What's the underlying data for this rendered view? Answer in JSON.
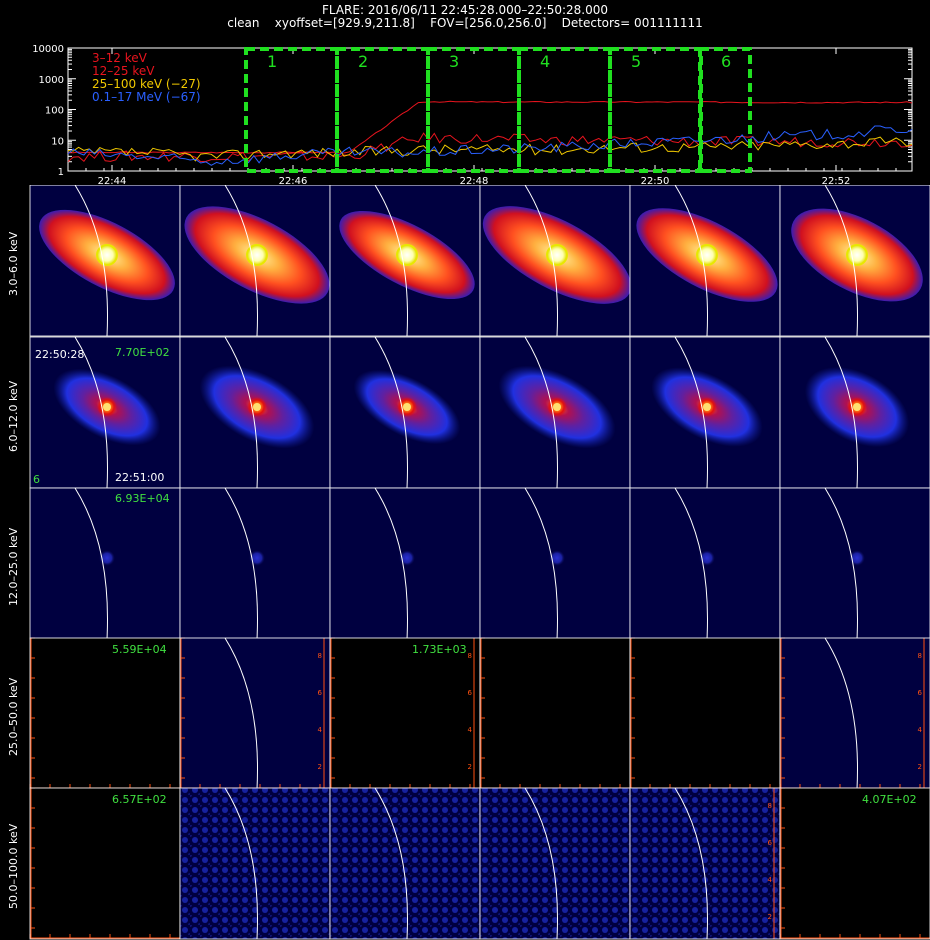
{
  "header": {
    "line1": "FLARE: 2016/06/11 22:45:28.000–22:50:28.000",
    "line2": "clean    xyoffset=[929.9,211.8]    FOV=[256.0,256.0]    Detectors= 001111111"
  },
  "lightcurve": {
    "y_ticks": [
      "10000",
      "1000",
      "100",
      "10",
      "1"
    ],
    "x_ticks": [
      "22:44",
      "22:46",
      "22:48",
      "22:50",
      "22:52"
    ],
    "legend": [
      {
        "label": "3–12 keV",
        "color": "#e8141e"
      },
      {
        "label": "12–25 keV",
        "color": "#e8141e"
      },
      {
        "label": "25–100 keV (−27)",
        "color": "#f0c800"
      },
      {
        "label": "0.1–17 MeV (−67)",
        "color": "#2a60ff"
      }
    ],
    "box_labels": [
      "1",
      "2",
      "3",
      "4",
      "5",
      "6"
    ],
    "box_color": "#20e020"
  },
  "chart_data": {
    "type": "line",
    "title": "",
    "xlabel": "",
    "ylabel": "",
    "x_ticks": [
      "22:44",
      "22:46",
      "22:48",
      "22:50",
      "22:52"
    ],
    "y_scale": "log",
    "ylim": [
      1,
      10000
    ],
    "series": [
      {
        "name": "3–12 keV",
        "color": "#e8141e",
        "values": [
          4,
          4,
          4,
          4,
          4,
          180,
          175,
          175,
          175,
          175,
          170,
          170,
          170
        ]
      },
      {
        "name": "12–25 keV",
        "color": "#e8141e",
        "values": [
          3,
          3,
          3,
          3,
          3,
          12,
          11,
          10,
          10,
          9,
          9,
          9,
          9
        ]
      },
      {
        "name": "25–100 keV (−27)",
        "color": "#f0c800",
        "values": [
          4,
          4,
          3,
          4,
          4,
          5,
          5,
          5,
          6,
          6,
          7,
          8,
          9
        ]
      },
      {
        "name": "0.1–17 MeV (−67)",
        "color": "#2a60ff",
        "values": [
          4,
          3,
          2,
          3,
          4,
          4,
          5,
          6,
          8,
          10,
          13,
          16,
          25
        ]
      }
    ]
  },
  "image_grid": {
    "row_labels": [
      "3.0–6.0 keV",
      "6.0–12.0 keV",
      "12.0–25.0 keV",
      "25.0–50.0 keV",
      "50.0–100.0 keV"
    ],
    "overlays": {
      "row2_max": "7.70E+02",
      "row2_time_start": "22:50:28",
      "row2_time_end": "22:51:00",
      "row2_index": "6",
      "row3_max": "6.93E+04",
      "row4_max_col1": "5.59E+04",
      "row4_max_col3": "1.73E+03",
      "row5_max_col1": "6.57E+02",
      "row5_max_col6": "4.07E+02"
    },
    "axis_ticks": [
      "2",
      "4",
      "6",
      "8"
    ]
  }
}
